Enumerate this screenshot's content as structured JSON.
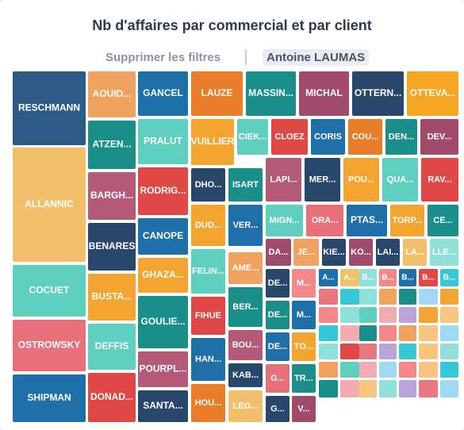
{
  "header": {
    "title": "Nb d'affaires par commercial et par client",
    "clear_filters": "Supprimer les filtres",
    "active_filter": "Antoine LAUMAS"
  },
  "palette": {
    "blue_dark": "#2c5c86",
    "orange_light": "#f0a35e",
    "blue": "#1f6fa8",
    "orange": "#ea7d2a",
    "teal": "#1a8f8a",
    "plum": "#a04b6b",
    "navy": "#29466b",
    "yellow": "#f5a623",
    "sand": "#f2c06a",
    "mint": "#5fcfc0",
    "red": "#e04848",
    "rose": "#b45a78",
    "gold": "#f4a52f",
    "coral": "#e8707a",
    "salmon": "#f28888",
    "pink": "#e87780",
    "cyan": "#36c7d9",
    "pale_teal": "#8fe0d9",
    "peach": "#f7c57e",
    "pale_pink": "#f3aab0",
    "lilac": "#b9a3d9",
    "sky": "#9ed8f2"
  },
  "chart_data": {
    "type": "treemap",
    "title": "Nb d'affaires par commercial et par client",
    "tiles": [
      {
        "label": "RESCHMANN",
        "color": "blue_dark"
      },
      {
        "label": "ALLANNIC",
        "color": "sand"
      },
      {
        "label": "COCUET",
        "color": "mint"
      },
      {
        "label": "OSTROWSKY",
        "color": "coral"
      },
      {
        "label": "SHIPMAN",
        "color": "blue"
      },
      {
        "label": "AOUID...",
        "color": "orange_light"
      },
      {
        "label": "ATZEN...",
        "color": "teal"
      },
      {
        "label": "BARGH...",
        "color": "rose"
      },
      {
        "label": "BENARES",
        "color": "navy"
      },
      {
        "label": "BUSTA...",
        "color": "gold"
      },
      {
        "label": "DEFFIS",
        "color": "mint"
      },
      {
        "label": "DONAD...",
        "color": "red"
      },
      {
        "label": "GANCEL",
        "color": "blue"
      },
      {
        "label": "PRALUT",
        "color": "mint"
      },
      {
        "label": "RODRIG...",
        "color": "red"
      },
      {
        "label": "CANOPE",
        "color": "blue"
      },
      {
        "label": "GHAZA...",
        "color": "gold"
      },
      {
        "label": "GOULIE...",
        "color": "teal"
      },
      {
        "label": "POURPL...",
        "color": "rose"
      },
      {
        "label": "SANTA...",
        "color": "navy"
      },
      {
        "label": "LAUZE",
        "color": "orange"
      },
      {
        "label": "MASSIN...",
        "color": "teal"
      },
      {
        "label": "MICHAL",
        "color": "plum"
      },
      {
        "label": "OTTERN...",
        "color": "navy"
      },
      {
        "label": "OTTEVA...",
        "color": "yellow"
      },
      {
        "label": "VUILLIER",
        "color": "gold"
      },
      {
        "label": "CIEK...",
        "color": "mint"
      },
      {
        "label": "CLOEZ",
        "color": "red"
      },
      {
        "label": "CORIS",
        "color": "blue"
      },
      {
        "label": "COU...",
        "color": "orange"
      },
      {
        "label": "DEN...",
        "color": "teal"
      },
      {
        "label": "DEV...",
        "color": "plum"
      },
      {
        "label": "DHO...",
        "color": "navy"
      },
      {
        "label": "ISART",
        "color": "teal"
      },
      {
        "label": "LAPI...",
        "color": "rose"
      },
      {
        "label": "MER...",
        "color": "navy"
      },
      {
        "label": "POU...",
        "color": "gold"
      },
      {
        "label": "QUA...",
        "color": "mint"
      },
      {
        "label": "RAV...",
        "color": "red"
      },
      {
        "label": "DUD...",
        "color": "gold"
      },
      {
        "label": "VER...",
        "color": "blue"
      },
      {
        "label": "MIGN...",
        "color": "mint"
      },
      {
        "label": "ORA...",
        "color": "coral"
      },
      {
        "label": "PTAS...",
        "color": "blue"
      },
      {
        "label": "TORP...",
        "color": "gold"
      },
      {
        "label": "CE...",
        "color": "teal"
      },
      {
        "label": "FELIN...",
        "color": "mint"
      },
      {
        "label": "AME...",
        "color": "orange_light"
      },
      {
        "label": "FIHUE",
        "color": "red"
      },
      {
        "label": "BER...",
        "color": "teal"
      },
      {
        "label": "BOU...",
        "color": "rose"
      },
      {
        "label": "HAN...",
        "color": "blue"
      },
      {
        "label": "KAB...",
        "color": "navy"
      },
      {
        "label": "HOU...",
        "color": "orange"
      },
      {
        "label": "LEG...",
        "color": "sand"
      },
      {
        "label": "DA...",
        "color": "plum"
      },
      {
        "label": "JE...",
        "color": "orange_light"
      },
      {
        "label": "KIE...",
        "color": "navy"
      },
      {
        "label": "KO...",
        "color": "plum"
      },
      {
        "label": "LAI...",
        "color": "navy"
      },
      {
        "label": "LA...",
        "color": "sand"
      },
      {
        "label": "LLE...",
        "color": "pale_teal"
      },
      {
        "label": "DE...",
        "color": "navy"
      },
      {
        "label": "M...",
        "color": "salmon"
      },
      {
        "label": "DE...",
        "color": "teal"
      },
      {
        "label": "M...",
        "color": "blue"
      },
      {
        "label": "DE...",
        "color": "blue"
      },
      {
        "label": "TO...",
        "color": "gold"
      },
      {
        "label": "G...",
        "color": "coral"
      },
      {
        "label": "TR...",
        "color": "teal"
      },
      {
        "label": "G...",
        "color": "navy"
      },
      {
        "label": "V...",
        "color": "plum"
      },
      {
        "label": "A...",
        "color": "blue"
      },
      {
        "label": "A...",
        "color": "sand"
      },
      {
        "label": "B...",
        "color": "pale_teal"
      },
      {
        "label": "B...",
        "color": "salmon"
      },
      {
        "label": "B...",
        "color": "blue"
      },
      {
        "label": "B...",
        "color": "red"
      },
      {
        "label": "B...",
        "color": "cyan"
      },
      {
        "label": "",
        "color": "pink"
      },
      {
        "label": "",
        "color": "cyan"
      },
      {
        "label": "",
        "color": "pale_teal"
      },
      {
        "label": "",
        "color": "orange_light"
      },
      {
        "label": "",
        "color": "teal"
      },
      {
        "label": "",
        "color": "sky"
      },
      {
        "label": "",
        "color": "gold"
      },
      {
        "label": "",
        "color": "salmon"
      },
      {
        "label": "",
        "color": "pale_teal"
      },
      {
        "label": "",
        "color": "mint"
      },
      {
        "label": "",
        "color": "pale_pink"
      },
      {
        "label": "",
        "color": "lilac"
      },
      {
        "label": "",
        "color": "gold"
      },
      {
        "label": "",
        "color": "peach"
      },
      {
        "label": "",
        "color": "cyan"
      },
      {
        "label": "",
        "color": "pale_pink"
      },
      {
        "label": "",
        "color": "teal"
      },
      {
        "label": "",
        "color": "salmon"
      },
      {
        "label": "",
        "color": "orange_light"
      },
      {
        "label": "",
        "color": "peach"
      },
      {
        "label": "",
        "color": "sky"
      },
      {
        "label": "",
        "color": "pale_teal"
      },
      {
        "label": "",
        "color": "red"
      },
      {
        "label": "",
        "color": "pink"
      },
      {
        "label": "",
        "color": "lilac"
      },
      {
        "label": "",
        "color": "cyan"
      },
      {
        "label": "",
        "color": "peach"
      },
      {
        "label": "",
        "color": "pale_teal"
      },
      {
        "label": "",
        "color": "orange_light"
      },
      {
        "label": "",
        "color": "mint"
      },
      {
        "label": "",
        "color": "pale_pink"
      },
      {
        "label": "",
        "color": "sky"
      },
      {
        "label": "",
        "color": "salmon"
      },
      {
        "label": "",
        "color": "peach"
      },
      {
        "label": "",
        "color": "cyan"
      },
      {
        "label": "",
        "color": "teal"
      },
      {
        "label": "",
        "color": "pale_pink"
      },
      {
        "label": "",
        "color": "peach"
      },
      {
        "label": "",
        "color": "pale_teal"
      },
      {
        "label": "",
        "color": "lilac"
      },
      {
        "label": "",
        "color": "pink"
      },
      {
        "label": "",
        "color": "sky"
      }
    ]
  }
}
